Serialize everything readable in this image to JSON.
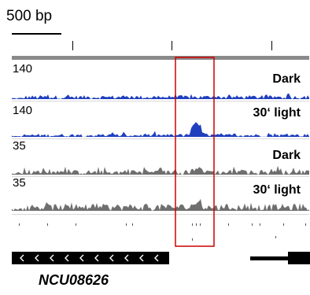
{
  "scale": {
    "label": "500 bp"
  },
  "tracks": [
    {
      "max": "140",
      "condition": "Dark",
      "color": "#1f3fbf"
    },
    {
      "max": "140",
      "condition": "30‘ light",
      "color": "#1f3fbf"
    },
    {
      "max": "35",
      "condition": "Dark",
      "color": "#6f6f6f"
    },
    {
      "max": "35",
      "condition": "30‘ light",
      "color": "#6f6f6f"
    }
  ],
  "highlight": {
    "color": "#cc0000"
  },
  "gene": {
    "name": "NCU08626",
    "strand_arrows": "‹"
  }
}
